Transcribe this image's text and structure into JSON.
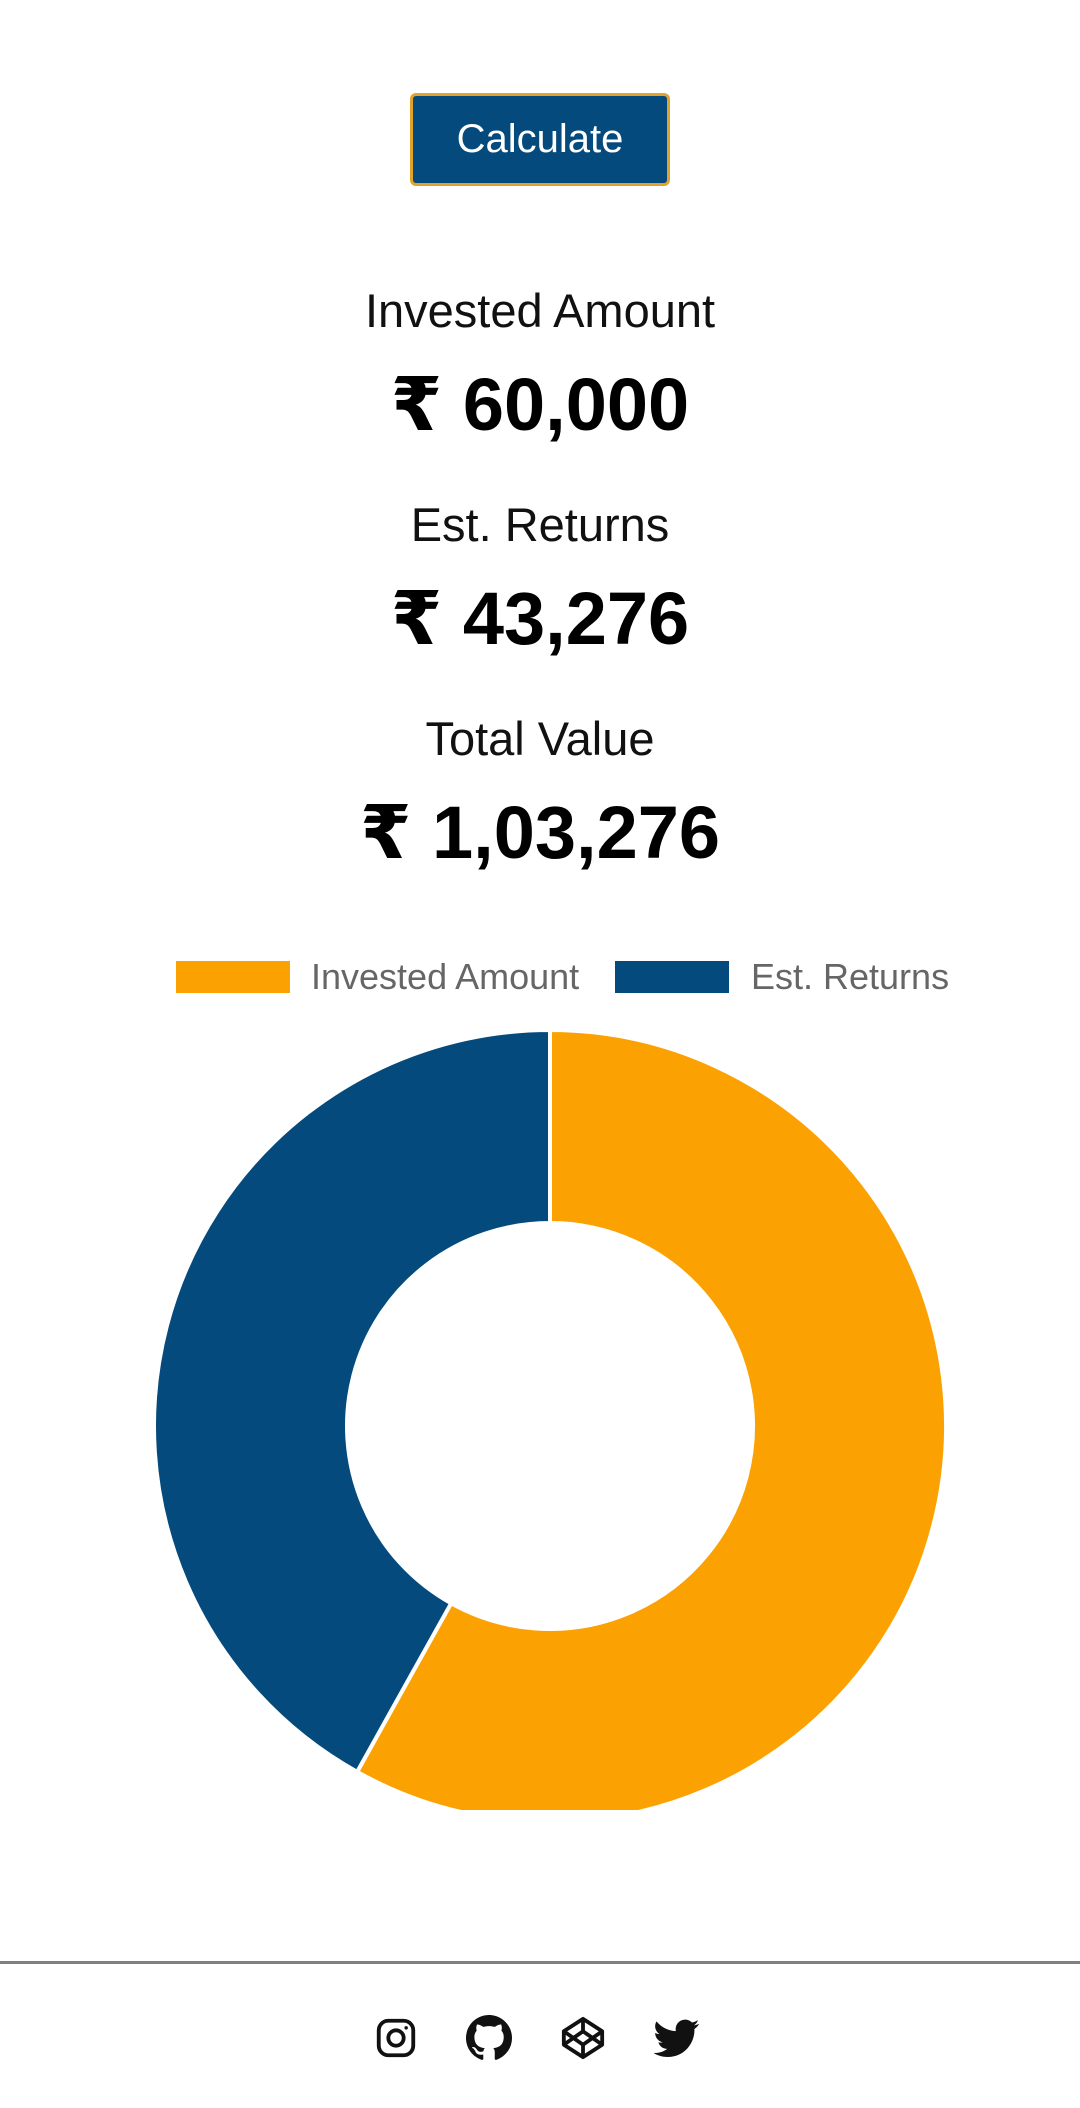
{
  "actions": {
    "calculate_label": "Calculate"
  },
  "summary": {
    "invested_label": "Invested Amount",
    "invested_value": "₹ 60,000",
    "returns_label": "Est. Returns",
    "returns_value": "₹ 43,276",
    "total_label": "Total Value",
    "total_value": "₹ 1,03,276"
  },
  "chart_data": {
    "type": "pie",
    "categories": [
      "Invested Amount",
      "Est. Returns"
    ],
    "values": [
      60000,
      43276
    ],
    "colors": [
      "#fca102",
      "#054a7d"
    ],
    "legend_position": "top"
  },
  "footer": {
    "icons": [
      "instagram-icon",
      "github-icon",
      "codepen-icon",
      "twitter-icon"
    ]
  }
}
